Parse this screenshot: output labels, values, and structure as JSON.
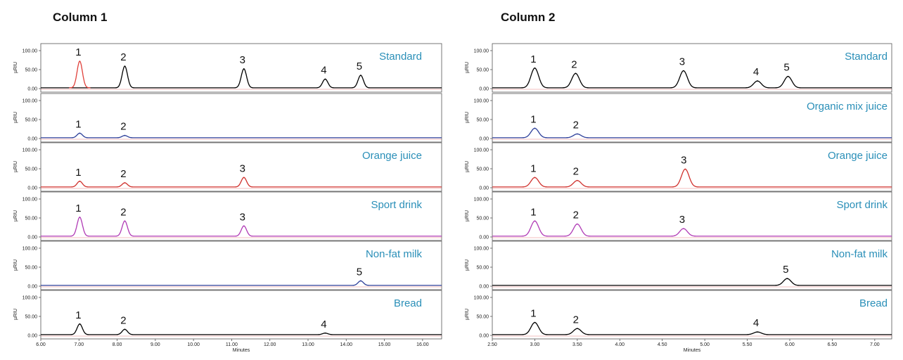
{
  "chart_data": [
    {
      "type": "line",
      "title": "Column 1",
      "xlabel": "Minutes",
      "ylabel": "µRIU",
      "xlim": [
        6.0,
        16.5
      ],
      "ylim": [
        0,
        100
      ],
      "xticks": [
        "6.00",
        "7.00",
        "8.00",
        "9.00",
        "10.00",
        "11.00",
        "12.00",
        "13.00",
        "14.00",
        "15.00",
        "16.00"
      ],
      "yticks": [
        "0.00",
        "50.00",
        "100.00"
      ],
      "panels": [
        {
          "sample": "Standard",
          "color": "#000000",
          "peaks": [
            {
              "label": "1",
              "x": 7.02,
              "h": 70,
              "color": "#e0403a"
            },
            {
              "label": "2",
              "x": 8.2,
              "h": 57
            },
            {
              "label": "3",
              "x": 11.32,
              "h": 50
            },
            {
              "label": "4",
              "x": 13.45,
              "h": 23
            },
            {
              "label": "5",
              "x": 14.38,
              "h": 33
            }
          ]
        },
        {
          "sample": "",
          "color": "#2c3f9a",
          "peaks": [
            {
              "label": "1",
              "x": 7.02,
              "h": 12
            },
            {
              "label": "2",
              "x": 8.2,
              "h": 6
            }
          ]
        },
        {
          "sample": "Orange juice",
          "color": "#d0312d",
          "peaks": [
            {
              "label": "1",
              "x": 7.02,
              "h": 15
            },
            {
              "label": "2",
              "x": 8.2,
              "h": 11
            },
            {
              "label": "3",
              "x": 11.32,
              "h": 25
            }
          ]
        },
        {
          "sample": "Sport drink",
          "color": "#b03ab5",
          "peaks": [
            {
              "label": "1",
              "x": 7.02,
              "h": 50
            },
            {
              "label": "2",
              "x": 8.2,
              "h": 40
            },
            {
              "label": "3",
              "x": 11.32,
              "h": 27
            }
          ]
        },
        {
          "sample": "Non-fat milk",
          "color": "#2c3f9a",
          "peaks": [
            {
              "label": "5",
              "x": 14.38,
              "h": 12
            }
          ]
        },
        {
          "sample": "Bread",
          "color": "#000000",
          "peaks": [
            {
              "label": "1",
              "x": 7.02,
              "h": 28
            },
            {
              "label": "2",
              "x": 8.2,
              "h": 14
            },
            {
              "label": "4",
              "x": 13.45,
              "h": 4
            }
          ]
        }
      ]
    },
    {
      "type": "line",
      "title": "Column 2",
      "xlabel": "Minutes",
      "ylabel": "µRIU",
      "xlim": [
        2.5,
        7.2
      ],
      "ylim": [
        0,
        100
      ],
      "xticks": [
        "2.50",
        "3.00",
        "3.50",
        "4.00",
        "4.50",
        "5.00",
        "5.50",
        "6.00",
        "6.50",
        "7.00"
      ],
      "yticks": [
        "0.00",
        "50.00",
        "100.00"
      ],
      "panels": [
        {
          "sample": "Standard",
          "color": "#000000",
          "peaks": [
            {
              "label": "1",
              "x": 3.0,
              "h": 52
            },
            {
              "label": "2",
              "x": 3.48,
              "h": 38
            },
            {
              "label": "3",
              "x": 4.75,
              "h": 45
            },
            {
              "label": "4",
              "x": 5.62,
              "h": 18
            },
            {
              "label": "5",
              "x": 5.98,
              "h": 30
            }
          ]
        },
        {
          "sample": "Organic mix juice",
          "color": "#2c3f9a",
          "peaks": [
            {
              "label": "1",
              "x": 3.0,
              "h": 25
            },
            {
              "label": "2",
              "x": 3.5,
              "h": 10
            }
          ]
        },
        {
          "sample": "Orange juice",
          "color": "#d0312d",
          "peaks": [
            {
              "label": "1",
              "x": 3.0,
              "h": 25
            },
            {
              "label": "2",
              "x": 3.5,
              "h": 17
            },
            {
              "label": "3",
              "x": 4.77,
              "h": 47
            }
          ]
        },
        {
          "sample": "Sport drink",
          "color": "#b03ab5",
          "peaks": [
            {
              "label": "1",
              "x": 3.0,
              "h": 40
            },
            {
              "label": "2",
              "x": 3.5,
              "h": 32
            },
            {
              "label": "3",
              "x": 4.75,
              "h": 20
            }
          ]
        },
        {
          "sample": "Non-fat milk",
          "color": "#000000",
          "peaks": [
            {
              "label": "5",
              "x": 5.97,
              "h": 18
            }
          ]
        },
        {
          "sample": "Bread",
          "color": "#000000",
          "peaks": [
            {
              "label": "1",
              "x": 3.0,
              "h": 32
            },
            {
              "label": "2",
              "x": 3.5,
              "h": 16
            },
            {
              "label": "4",
              "x": 5.62,
              "h": 7
            }
          ]
        }
      ]
    }
  ]
}
